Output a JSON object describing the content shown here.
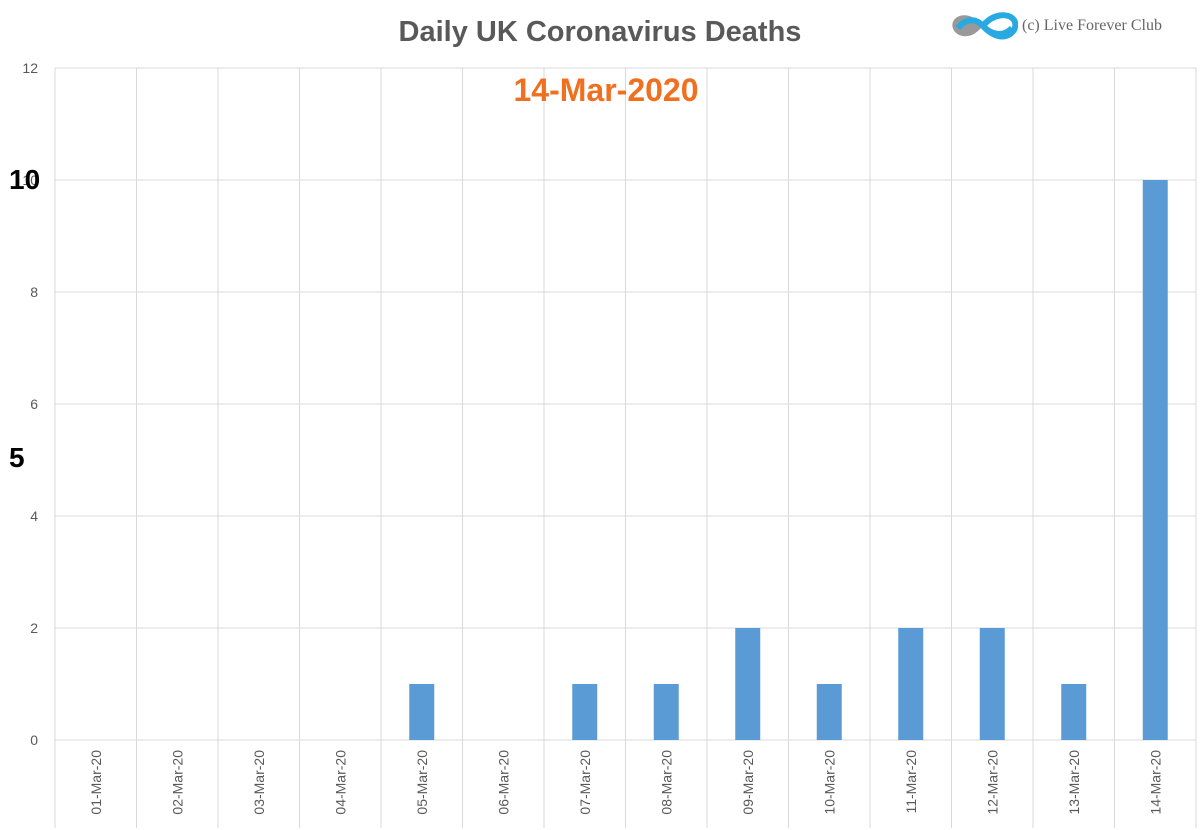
{
  "chart_data": {
    "type": "bar",
    "title": "Daily UK Coronavirus Deaths",
    "subtitle": "14-Mar-2020",
    "xlabel": "",
    "ylabel": "",
    "categories": [
      "01-Mar-20",
      "02-Mar-20",
      "03-Mar-20",
      "04-Mar-20",
      "05-Mar-20",
      "06-Mar-20",
      "07-Mar-20",
      "08-Mar-20",
      "09-Mar-20",
      "10-Mar-20",
      "11-Mar-20",
      "12-Mar-20",
      "13-Mar-20",
      "14-Mar-20"
    ],
    "values": [
      0,
      0,
      0,
      0,
      1,
      0,
      1,
      1,
      2,
      1,
      2,
      2,
      1,
      10
    ],
    "ylim": [
      0,
      12
    ],
    "yticks": [
      "0",
      "2",
      "4",
      "6",
      "8",
      "10",
      "12"
    ],
    "grid": true,
    "bar_color": "#5b9bd5",
    "side_markers": [
      "10",
      "5"
    ]
  },
  "watermark": {
    "text": "(c) Live Forever Club",
    "icon": "infinity-logo-icon",
    "colors": [
      "#29a9e1",
      "#999999"
    ]
  },
  "colors": {
    "title": "#595959",
    "subtitle": "#f07020",
    "grid": "#d9d9d9",
    "axis_text": "#595959"
  }
}
